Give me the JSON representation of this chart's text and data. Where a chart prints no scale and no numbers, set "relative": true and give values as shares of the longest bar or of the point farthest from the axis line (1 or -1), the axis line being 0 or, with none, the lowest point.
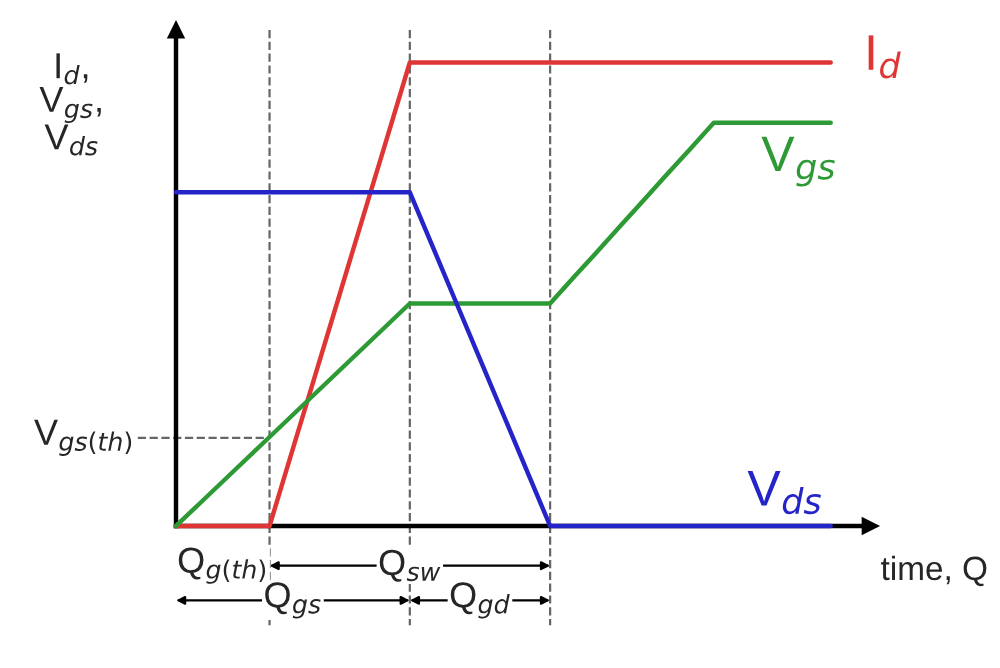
{
  "chart_data": {
    "type": "line",
    "relative": true,
    "xlabel": "time, Q",
    "ylabel": "I$_{d}$,\nV$_{gs}$,\nV$_{ds}$",
    "categories": [
      null,
      null,
      null,
      null,
      null,
      null,
      null,
      null,
      null,
      null,
      null,
      null,
      null,
      null,
      null,
      null,
      null,
      null,
      null,
      null,
      null,
      null,
      null,
      null,
      null,
      null,
      null,
      null,
      null
    ],
    "grid": "x",
    "line_style": "solid",
    "marker": "none",
    "series": [
      {
        "name": "I$_{d}$",
        "color": "#e03535",
        "values": [
          0,
          0,
          0,
          0,
          0,
          0.167,
          0.333,
          0.5,
          0.667,
          0.833,
          1,
          1,
          1,
          1,
          1,
          1,
          1,
          1,
          1,
          1,
          1,
          1,
          1,
          1,
          1,
          1,
          1,
          1,
          1
        ]
      },
      {
        "name": "V$_{gs}$",
        "color": "#2e9a36",
        "values": [
          0,
          0.048,
          0.096,
          0.144,
          0.192,
          0.24,
          0.288,
          0.336,
          0.384,
          0.432,
          0.48,
          0.48,
          0.48,
          0.48,
          0.48,
          0.48,
          0.48,
          0.536,
          0.591,
          0.647,
          0.703,
          0.759,
          0.814,
          0.87,
          0.87,
          0.87,
          0.87,
          0.87,
          0.87
        ]
      },
      {
        "name": "V$_{ds}$",
        "color": "#2424c8",
        "values": [
          0.72,
          0.72,
          0.72,
          0.72,
          0.72,
          0.72,
          0.72,
          0.72,
          0.72,
          0.72,
          0.72,
          0.6,
          0.48,
          0.36,
          0.24,
          0.12,
          0,
          0,
          0,
          0,
          0,
          0,
          0,
          0,
          0,
          0,
          0,
          0,
          0
        ]
      }
    ],
    "ref_lines": [
      {
        "axis": "y",
        "value": 0.19,
        "label": "V$_{gs(th)}$",
        "color": "#666666",
        "line_style": "dashed"
      }
    ],
    "annotations": [
      "Q$_{g(th)}$",
      "Q$_{sw}$",
      "Q$_{gs}$",
      "Q$_{gd}$"
    ]
  }
}
